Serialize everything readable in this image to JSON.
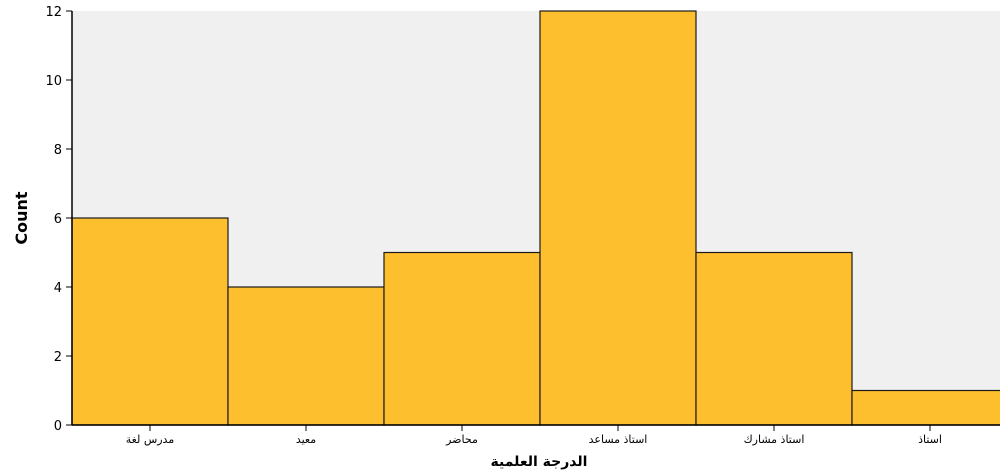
{
  "chart_data": {
    "type": "bar",
    "categories": [
      "مدرس لغة",
      "معيد",
      "محاضر",
      "استاذ مساعد",
      "استاذ مشارك",
      "استاذ"
    ],
    "values": [
      6,
      4,
      5,
      12,
      5,
      1
    ],
    "xlabel": "الدرجة العلمية",
    "ylabel": "Count",
    "ylim": [
      0,
      12
    ],
    "yticks": [
      0,
      2,
      4,
      6,
      8,
      10,
      12
    ],
    "grid": false,
    "colors": {
      "bar_fill": "#FDBF2D",
      "bar_stroke": "#1a1a1a",
      "plot_background": "#F0F0F0",
      "axis": "#000000"
    }
  }
}
